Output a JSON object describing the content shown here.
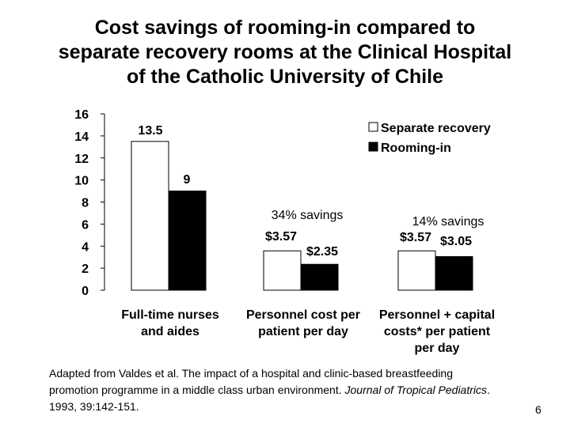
{
  "slide": {
    "title_lines": [
      "Cost savings of rooming-in compared to",
      "separate recovery rooms at the Clinical Hospital",
      "of the Catholic University of Chile"
    ],
    "citation_lines": [
      "Adapted from Valdes et al. The impact of a hospital and clinic-based breastfeeding",
      "promotion programme in a middle class urban environment. Journal of Tropical Pediatrics.",
      "1993, 39:142-151."
    ],
    "page_number": "6"
  },
  "chart_data": {
    "type": "bar",
    "ylim": [
      0,
      16
    ],
    "yticks": [
      0,
      2,
      4,
      6,
      8,
      10,
      12,
      14,
      16
    ],
    "grid": false,
    "legend_position": "top-right",
    "categories": [
      [
        "Full-time nurses",
        "and aides"
      ],
      [
        "Personnel cost per",
        "patient per day"
      ],
      [
        "Personnel + capital",
        "costs* per patient",
        "per day"
      ]
    ],
    "series": [
      {
        "name": "Separate recovery",
        "color": "#ffffff",
        "values": [
          13.5,
          3.57,
          3.57
        ],
        "value_labels": [
          "13.5",
          "$3.57",
          "$3.57"
        ]
      },
      {
        "name": "Rooming-in",
        "color": "#000000",
        "values": [
          9,
          2.35,
          3.05
        ],
        "value_labels": [
          "9",
          "$2.35",
          "$3.05"
        ]
      }
    ],
    "annotations": [
      "34% savings",
      "14% savings"
    ]
  }
}
